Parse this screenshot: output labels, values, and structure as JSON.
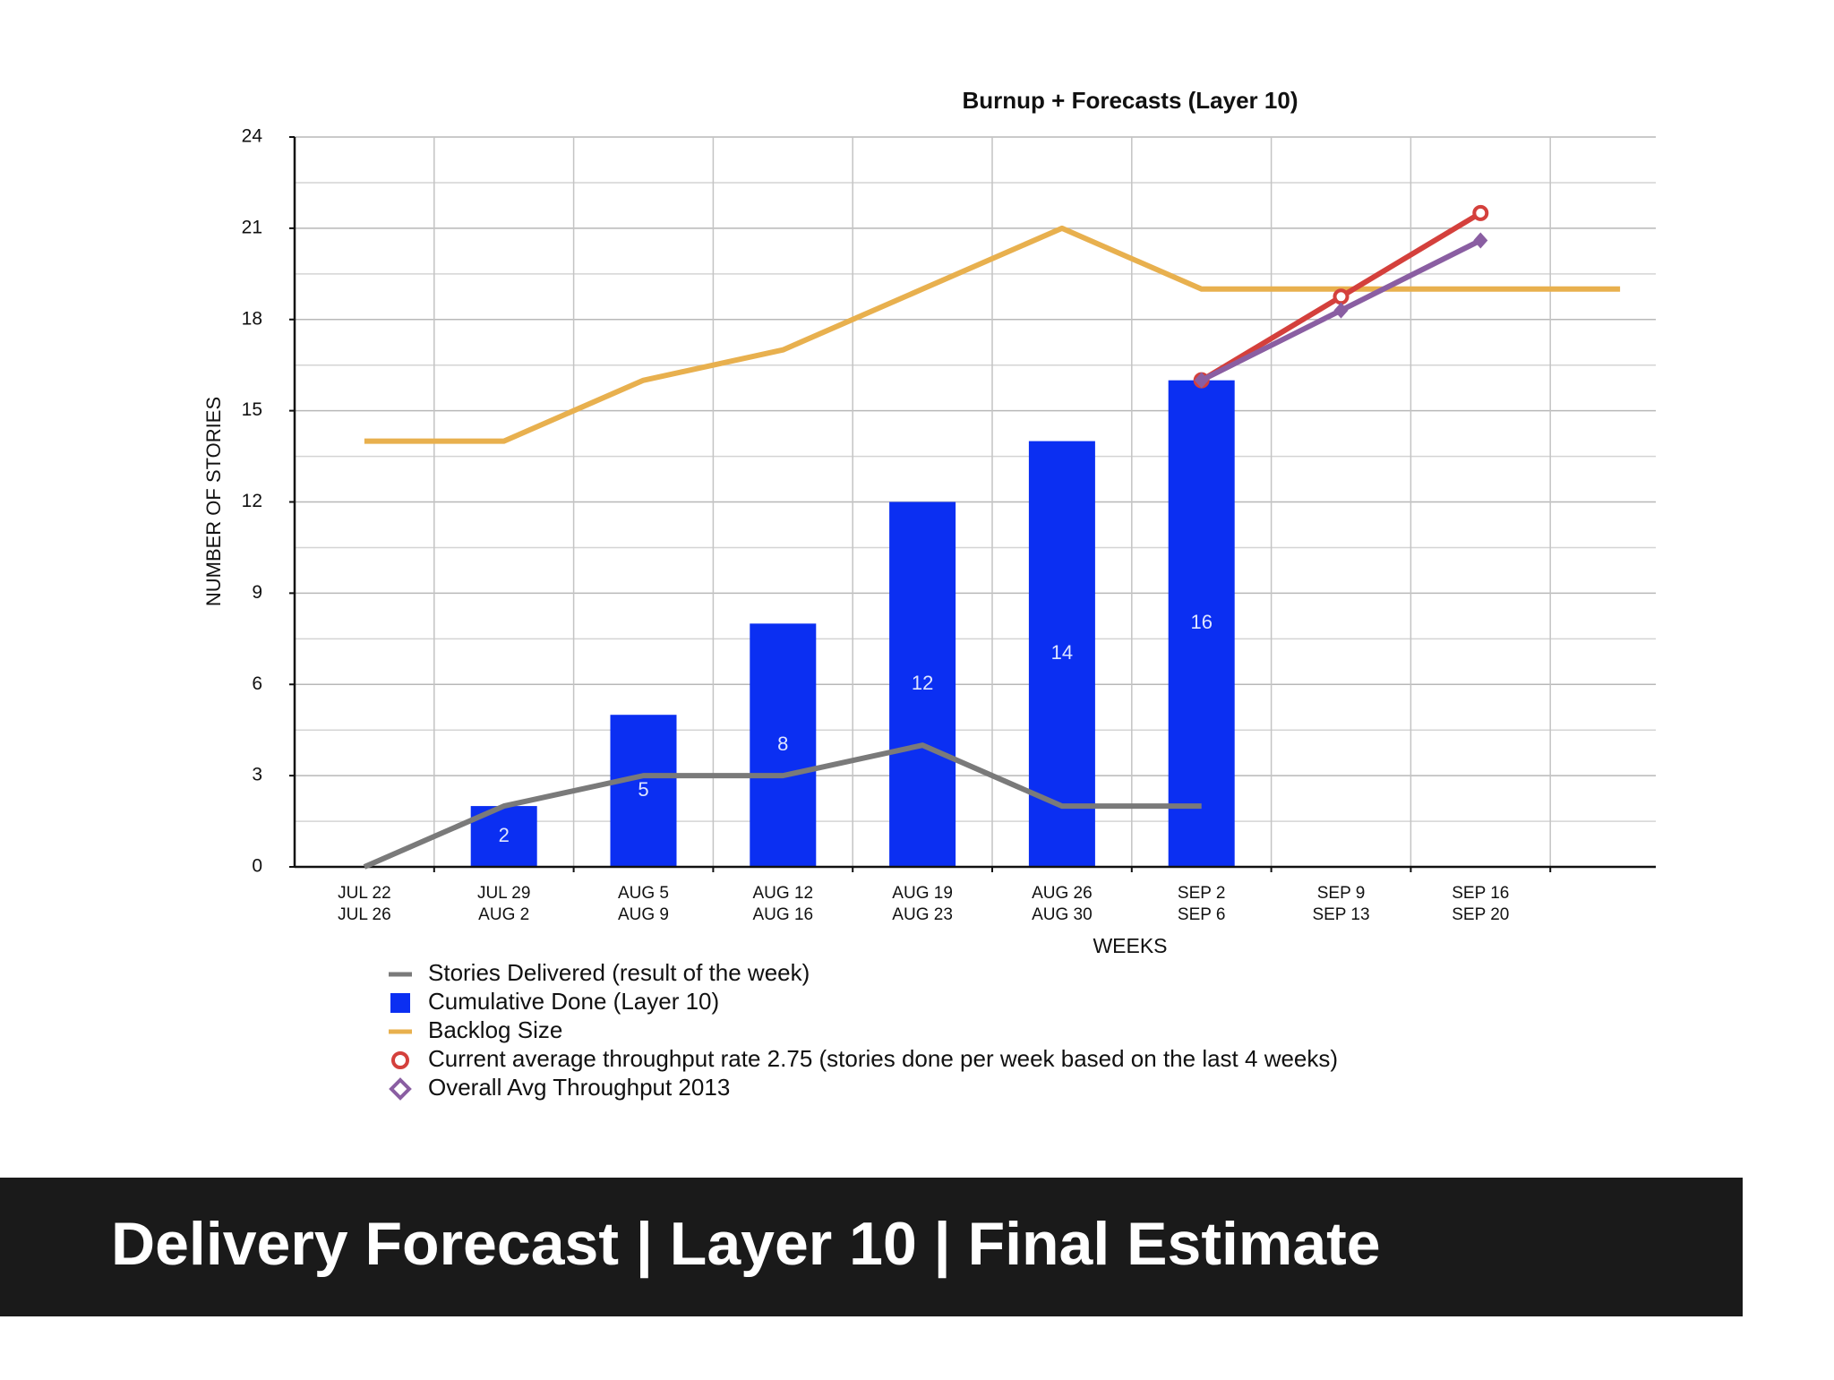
{
  "chart_data": {
    "type": "combo",
    "title": "Burnup + Forecasts (Layer 10)",
    "x_label": "WEEKS",
    "y_label": "NUMBER OF STORIES",
    "categories": [
      [
        "JUL 22",
        "JUL 26"
      ],
      [
        "JUL 29",
        "AUG 2"
      ],
      [
        "AUG 5",
        "AUG 9"
      ],
      [
        "AUG 12",
        "AUG 16"
      ],
      [
        "AUG 19",
        "AUG 23"
      ],
      [
        "AUG 26",
        "AUG 30"
      ],
      [
        "SEP 2",
        "SEP 6"
      ],
      [
        "SEP 9",
        "SEP 13"
      ],
      [
        "SEP 16",
        "SEP 20"
      ],
      null
    ],
    "ylim": [
      0,
      24
    ],
    "yticks": [
      0,
      3,
      6,
      9,
      12,
      15,
      18,
      21,
      24
    ],
    "yminor": [
      1.5,
      4.5,
      7.5,
      10.5,
      13.5,
      16.5,
      19.5,
      22.5
    ],
    "grid": true,
    "series": [
      {
        "name": "Stories Delivered (result of the week)",
        "type": "line",
        "color": "#7a7a7a",
        "values": [
          0,
          2,
          3,
          3,
          4,
          2,
          2,
          null,
          null,
          null
        ]
      },
      {
        "name": "Cumulative Done (Layer  10)",
        "type": "bar",
        "color": "#0b2ff2",
        "values": [
          null,
          2,
          5,
          8,
          12,
          14,
          16,
          null,
          null,
          null
        ]
      },
      {
        "name": "Backlog Size",
        "type": "line",
        "color": "#e8b04e",
        "values": [
          14,
          14,
          16,
          17,
          19,
          21,
          19,
          19,
          19,
          19
        ]
      },
      {
        "name": "Current average throughput rate 2.75 (stories done per week based on the last 4 weeks)",
        "type": "line",
        "marker": "circle",
        "color": "#d4403c",
        "values": [
          null,
          null,
          null,
          null,
          null,
          null,
          16,
          18.75,
          21.5,
          null
        ]
      },
      {
        "name": "Overall Avg Throughput 2013",
        "type": "line",
        "marker": "diamond",
        "color": "#8a5ea2",
        "values": [
          null,
          null,
          null,
          null,
          null,
          null,
          16,
          18.3,
          20.6,
          null
        ]
      }
    ]
  },
  "banner": {
    "text": "Delivery Forecast | Layer 10 | Final Estimate"
  }
}
